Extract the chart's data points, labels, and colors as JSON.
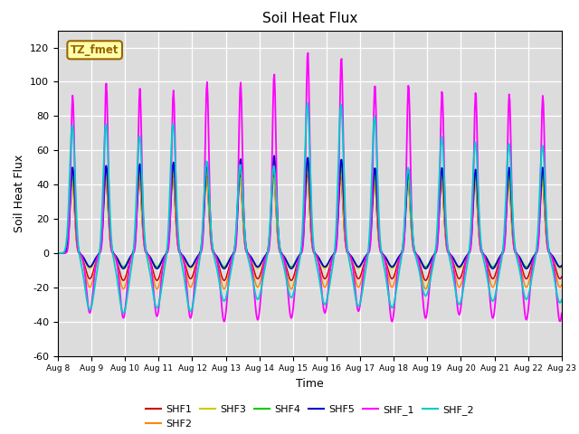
{
  "title": "Soil Heat Flux",
  "xlabel": "Time",
  "ylabel": "Soil Heat Flux",
  "ylim": [
    -60,
    130
  ],
  "yticks": [
    -60,
    -40,
    -20,
    0,
    20,
    40,
    60,
    80,
    100,
    120
  ],
  "xtick_labels": [
    "Aug 8",
    "Aug 9",
    "Aug 10",
    "Aug 11",
    "Aug 12",
    "Aug 13",
    "Aug 14",
    "Aug 15",
    "Aug 16",
    "Aug 17",
    "Aug 18",
    "Aug 19",
    "Aug 20",
    "Aug 21",
    "Aug 22",
    "Aug 23"
  ],
  "series_colors": {
    "SHF1": "#cc0000",
    "SHF2": "#ff8800",
    "SHF3": "#cccc00",
    "SHF4": "#00cc00",
    "SHF5": "#0000cc",
    "SHF_1": "#ff00ff",
    "SHF_2": "#00cccc"
  },
  "bg_color": "#dcdcdc",
  "annotation_text": "TZ_fmet",
  "annotation_color": "#996600",
  "annotation_bg": "#ffffaa"
}
